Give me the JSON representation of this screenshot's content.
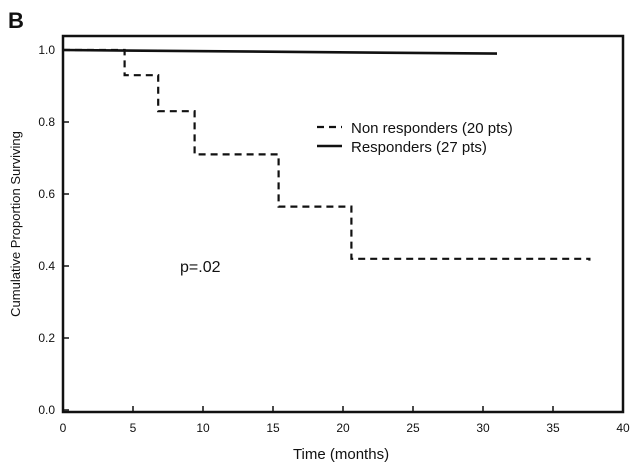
{
  "panel_label": "B",
  "chart_data": {
    "type": "line",
    "title": "",
    "xlabel": "Time (months)",
    "ylabel": "Cumulative Proportion Surviving",
    "xlim": [
      0,
      40
    ],
    "ylim": [
      0,
      1.05
    ],
    "xticks": [
      0,
      5,
      10,
      15,
      20,
      25,
      30,
      35,
      40
    ],
    "yticks": [
      0.0,
      0.2,
      0.4,
      0.6,
      0.8,
      1.0
    ],
    "xtick_labels": [
      "0",
      "5",
      "10",
      "15",
      "20",
      "25",
      "30",
      "35",
      "40"
    ],
    "ytick_labels": [
      "0.0",
      "0.2",
      "0.4",
      "0.6",
      "0.8",
      "1.0"
    ],
    "legend_position": "upper-right",
    "grid": false,
    "annotation": "p=.02",
    "series": [
      {
        "name": "Non responders (20 pts)",
        "style": "dashed",
        "color": "#111111",
        "step": true,
        "x": [
          0,
          4.4,
          6.8,
          9.4,
          15.4,
          20.6,
          37.6
        ],
        "y": [
          1.0,
          0.93,
          0.83,
          0.71,
          0.565,
          0.42,
          0.415
        ]
      },
      {
        "name": "Responders (27 pts)",
        "style": "solid",
        "color": "#111111",
        "step": false,
        "x": [
          0,
          31.0
        ],
        "y": [
          1.0,
          0.99
        ]
      }
    ]
  }
}
